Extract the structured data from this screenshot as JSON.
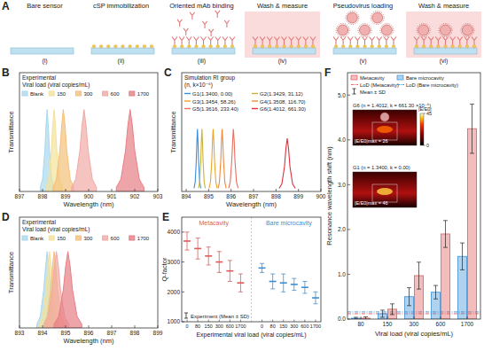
{
  "panel_a": {
    "panel": "A",
    "steps": [
      {
        "numeral": "(i)",
        "label": "Bare sensor",
        "highlight": false
      },
      {
        "numeral": "(ii)",
        "label": "cSP immobilization",
        "highlight": false
      },
      {
        "numeral": "(iii)",
        "label": "Oriented mAb binding",
        "highlight": false
      },
      {
        "numeral": "(iv)",
        "label": "Wash & measure",
        "highlight": true
      },
      {
        "numeral": "(v)",
        "label": "Pseudovirus loading",
        "highlight": false
      },
      {
        "numeral": "(vi)",
        "label": "Wash & measure",
        "highlight": true
      }
    ]
  },
  "chart_data": [
    {
      "panel": "B",
      "type": "area",
      "x_label": "Wavelength (nm)",
      "y_label": "Transmittance",
      "legend_title": [
        "Experimental",
        "Viral load (viral copies/mL)"
      ],
      "xlim": [
        897,
        903
      ],
      "xticks": [
        897,
        898,
        899,
        900,
        901,
        902,
        903
      ],
      "ylim": [
        0,
        1.45
      ],
      "tick_labels": "x",
      "legend": "top",
      "series": [
        {
          "name": "Blank",
          "color": "#a9d8ee",
          "x": [
            897.9,
            898.0,
            898.1,
            898.15,
            898.2,
            898.25,
            898.3,
            898.4,
            898.5
          ],
          "values": [
            0.05,
            0.15,
            0.5,
            0.8,
            1.0,
            0.8,
            0.5,
            0.15,
            0.05
          ]
        },
        {
          "name": "150",
          "color": "#f3e29a",
          "x": [
            898.14,
            898.26,
            898.38,
            898.44,
            898.5,
            898.56,
            898.62,
            898.74,
            898.86
          ],
          "values": [
            0.05,
            0.15,
            0.5,
            0.8,
            1.0,
            0.8,
            0.5,
            0.15,
            0.05
          ]
        },
        {
          "name": "300",
          "color": "#f4c07a",
          "x": [
            898.45,
            898.6,
            898.75,
            898.83,
            898.9,
            898.98,
            899.05,
            899.2,
            899.35
          ],
          "values": [
            0.05,
            0.15,
            0.5,
            0.8,
            1.0,
            0.8,
            0.5,
            0.15,
            0.05
          ]
        },
        {
          "name": "600",
          "color": "#f1a9a5",
          "x": [
            899.26,
            899.44,
            899.62,
            899.71,
            899.8,
            899.89,
            899.98,
            900.16,
            900.34
          ],
          "values": [
            0.05,
            0.15,
            0.5,
            0.8,
            1.0,
            0.8,
            0.5,
            0.15,
            0.05
          ]
        },
        {
          "name": "1700",
          "color": "#e77f86",
          "x": [
            901.2,
            901.4,
            901.6,
            901.7,
            901.8,
            901.9,
            902.0,
            902.2,
            902.4
          ],
          "values": [
            0.05,
            0.15,
            0.5,
            0.8,
            1.0,
            0.8,
            0.5,
            0.15,
            0.05
          ]
        }
      ]
    },
    {
      "panel": "C",
      "type": "line",
      "x_label": "Wavelength (nm)",
      "y_label": "Transmittance",
      "legend_title": [
        "Simulation RI group",
        "(n, k×10⁻⁶)"
      ],
      "xlim": [
        893.8,
        900
      ],
      "xticks": [
        894,
        895,
        896,
        897,
        898,
        899,
        900
      ],
      "ylim": [
        0,
        1.9
      ],
      "tick_labels": "x",
      "legend": "top",
      "series": [
        {
          "name": "G1(1.3400, 0.00)",
          "color": "#3b8fd6",
          "x": [
            894.35,
            894.4,
            894.45,
            894.475,
            894.5,
            894.525,
            894.55,
            894.6,
            894.65
          ],
          "values": [
            0.05,
            0.15,
            0.5,
            0.8,
            1.0,
            0.8,
            0.5,
            0.15,
            0.05
          ]
        },
        {
          "name": "G2(1.3429, 31.12)",
          "color": "#c9b23a",
          "x": [
            894.55,
            894.6,
            894.65,
            894.675,
            894.7,
            894.725,
            894.75,
            894.8,
            894.85
          ],
          "values": [
            0.05,
            0.15,
            0.5,
            0.8,
            1.0,
            0.8,
            0.5,
            0.15,
            0.05
          ]
        },
        {
          "name": "G3(1.3454, 58.26)",
          "color": "#e6a62c",
          "x": [
            895.02,
            895.08,
            895.14,
            895.17,
            895.2,
            895.23,
            895.26,
            895.32,
            895.38
          ],
          "values": [
            0.05,
            0.15,
            0.5,
            0.8,
            1.0,
            0.8,
            0.5,
            0.15,
            0.05
          ]
        },
        {
          "name": "G4(1.3508, 116.70)",
          "color": "#ee8a3c",
          "x": [
            895.42,
            895.48,
            895.54,
            895.57,
            895.6,
            895.63,
            895.66,
            895.72,
            895.78
          ],
          "values": [
            0.05,
            0.15,
            0.5,
            0.8,
            1.0,
            0.8,
            0.5,
            0.15,
            0.05
          ]
        },
        {
          "name": "G5(1.3616, 233.40)",
          "color": "#e8705f",
          "x": [
            895.89,
            895.96,
            896.03,
            896.07,
            896.1,
            896.14,
            896.17,
            896.24,
            896.31
          ],
          "values": [
            0.05,
            0.15,
            0.5,
            0.8,
            1.0,
            0.8,
            0.5,
            0.15,
            0.05
          ]
        },
        {
          "name": "G6(1.4012, 661.30)",
          "color": "#e0303a",
          "x": [
            898.14,
            898.26,
            898.38,
            898.44,
            898.5,
            898.56,
            898.62,
            898.74,
            898.86
          ],
          "values": [
            0.05,
            0.12,
            0.4,
            0.68,
            0.85,
            0.68,
            0.4,
            0.12,
            0.05
          ]
        }
      ]
    },
    {
      "panel": "D",
      "type": "area",
      "x_label": "Wavelength (nm)",
      "y_label": "Transmittance",
      "legend_title": [
        "Experimental",
        "Viral load (viral copies/mL)"
      ],
      "xlim": [
        893,
        899
      ],
      "xticks": [
        893,
        894,
        895,
        896,
        897,
        898,
        899
      ],
      "ylim": [
        0,
        1.45
      ],
      "tick_labels": "x",
      "legend": "top",
      "series": [
        {
          "name": "Blank",
          "color": "#a9d8ee",
          "x": [
            893.75,
            893.9,
            894.05,
            894.13,
            894.2,
            894.28,
            894.35,
            894.5,
            894.65
          ],
          "values": [
            0.05,
            0.15,
            0.5,
            0.8,
            1.0,
            0.8,
            0.5,
            0.15,
            0.05
          ]
        },
        {
          "name": "150",
          "color": "#f3e29a",
          "x": [
            893.85,
            894.0,
            894.15,
            894.23,
            894.3,
            894.38,
            894.45,
            894.6,
            894.75
          ],
          "values": [
            0.05,
            0.15,
            0.5,
            0.8,
            1.0,
            0.8,
            0.5,
            0.15,
            0.05
          ]
        },
        {
          "name": "300",
          "color": "#f4c07a",
          "x": [
            894.05,
            894.2,
            894.35,
            894.43,
            894.5,
            894.58,
            894.65,
            894.8,
            894.95
          ],
          "values": [
            0.05,
            0.15,
            0.5,
            0.8,
            1.0,
            0.8,
            0.5,
            0.15,
            0.05
          ]
        },
        {
          "name": "600",
          "color": "#f1a9a5",
          "x": [
            894.06,
            894.24,
            894.42,
            894.51,
            894.6,
            894.69,
            894.78,
            894.96,
            895.14
          ],
          "values": [
            0.05,
            0.15,
            0.5,
            0.8,
            1.0,
            0.8,
            0.5,
            0.15,
            0.05
          ]
        },
        {
          "name": "1700",
          "color": "#e77f86",
          "x": [
            894.5,
            894.7,
            894.9,
            895.0,
            895.1,
            895.2,
            895.3,
            895.5,
            895.7
          ],
          "values": [
            0.05,
            0.15,
            0.5,
            0.8,
            1.0,
            0.8,
            0.5,
            0.15,
            0.05
          ]
        }
      ]
    },
    {
      "panel": "E",
      "type": "errorbar",
      "x_label": "Experimental viral load (viral copies/mL)",
      "y_label": "Q-factor",
      "annotation": "Experiment (Mean ± SD)",
      "categories": [
        "0",
        "80",
        "150",
        "300",
        "600",
        "1700"
      ],
      "ylim": [
        1000,
        4500
      ],
      "yticks": [
        1000,
        2000,
        3000,
        4000
      ],
      "series": [
        {
          "name": "Metacavity",
          "color": "#e05a5a",
          "values": [
            3700,
            3450,
            3200,
            3000,
            2700,
            2300
          ],
          "sd": [
            300,
            350,
            300,
            350,
            350,
            300
          ]
        },
        {
          "name": "Bare microcavity",
          "color": "#3d8fd1",
          "values": [
            2800,
            2350,
            2300,
            2250,
            2150,
            1800
          ],
          "sd": [
            150,
            250,
            300,
            200,
            200,
            200
          ]
        }
      ]
    },
    {
      "panel": "F",
      "type": "bar",
      "x_label": "Viral load (viral copies/mL)",
      "y_label": "Resonance wavelength shift (nm)",
      "categories": [
        "80",
        "150",
        "300",
        "600",
        "1700"
      ],
      "ylim": [
        0,
        5.5
      ],
      "yticks": [
        {
          "value": 0,
          "label": "0.0"
        },
        {
          "value": 1,
          "label": "1.0"
        },
        {
          "value": 2,
          "label": "2.0"
        },
        {
          "value": 3,
          "label": "3.0"
        },
        {
          "value": 4,
          "label": "4.0"
        },
        {
          "value": 5,
          "label": "5.0"
        }
      ],
      "legend": "top-left",
      "errorbar_label": "Mean ± SD",
      "series": [
        {
          "name": "Bare microcavity",
          "color": "#3d8fd1",
          "values": [
            0.02,
            0.12,
            0.5,
            0.6,
            1.4
          ],
          "sd": [
            0.02,
            0.08,
            0.2,
            0.15,
            0.3
          ]
        },
        {
          "name": "Metacavity",
          "color": "#e05a5a",
          "values": [
            0.02,
            0.22,
            0.97,
            1.9,
            4.25
          ],
          "sd": [
            0.03,
            0.12,
            0.3,
            0.3,
            0.55
          ]
        }
      ],
      "lod": [
        {
          "name": "LoD (Metacavity)",
          "value": 0.12,
          "color": "#e05a5a"
        },
        {
          "name": "LoD (Bare microcavity)",
          "value": 0.16,
          "color": "#3d8fd1"
        }
      ],
      "insets": [
        {
          "title": "G6 (n = 1.4012, k = 661.30 ×10⁻⁶)",
          "max_label": "|E/E0|max = 26"
        },
        {
          "title": "G1 (n = 1.3400, k = 0.00)",
          "max_label": "|E/E0|max = 46"
        }
      ],
      "colorbar": {
        "label": "|E/E0|",
        "range": [
          0,
          45
        ],
        "ticks": [
          0,
          45
        ]
      }
    }
  ]
}
